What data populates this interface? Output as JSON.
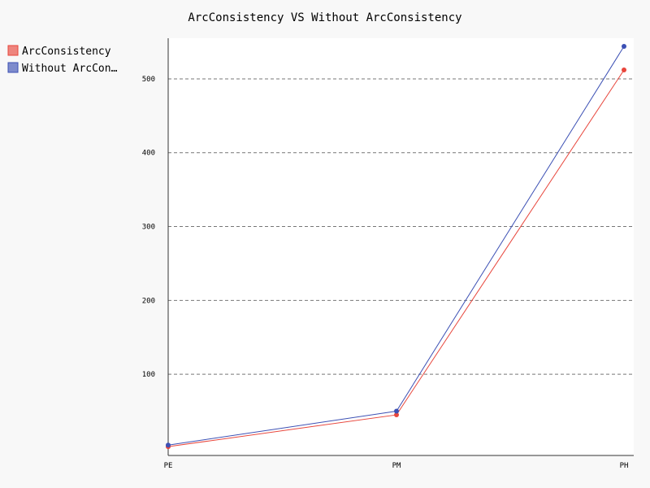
{
  "chart_data": {
    "type": "line",
    "title": "ArcConsistency VS Without ArcConsistency",
    "categories": [
      "PE",
      "PM",
      "PH"
    ],
    "series": [
      {
        "name": "ArcConsistency",
        "legend_label": "ArcConsistency",
        "color": "#e8463c",
        "values": [
          2,
          45,
          512
        ]
      },
      {
        "name": "Without ArcConsistency",
        "legend_label": "Without ArcCon…",
        "color": "#3c50b4",
        "values": [
          4,
          50,
          544
        ]
      }
    ],
    "yticks": [
      100,
      200,
      300,
      400,
      500
    ],
    "ylim": [
      -10,
      555
    ],
    "grid": true,
    "legend_position": "top-left"
  }
}
